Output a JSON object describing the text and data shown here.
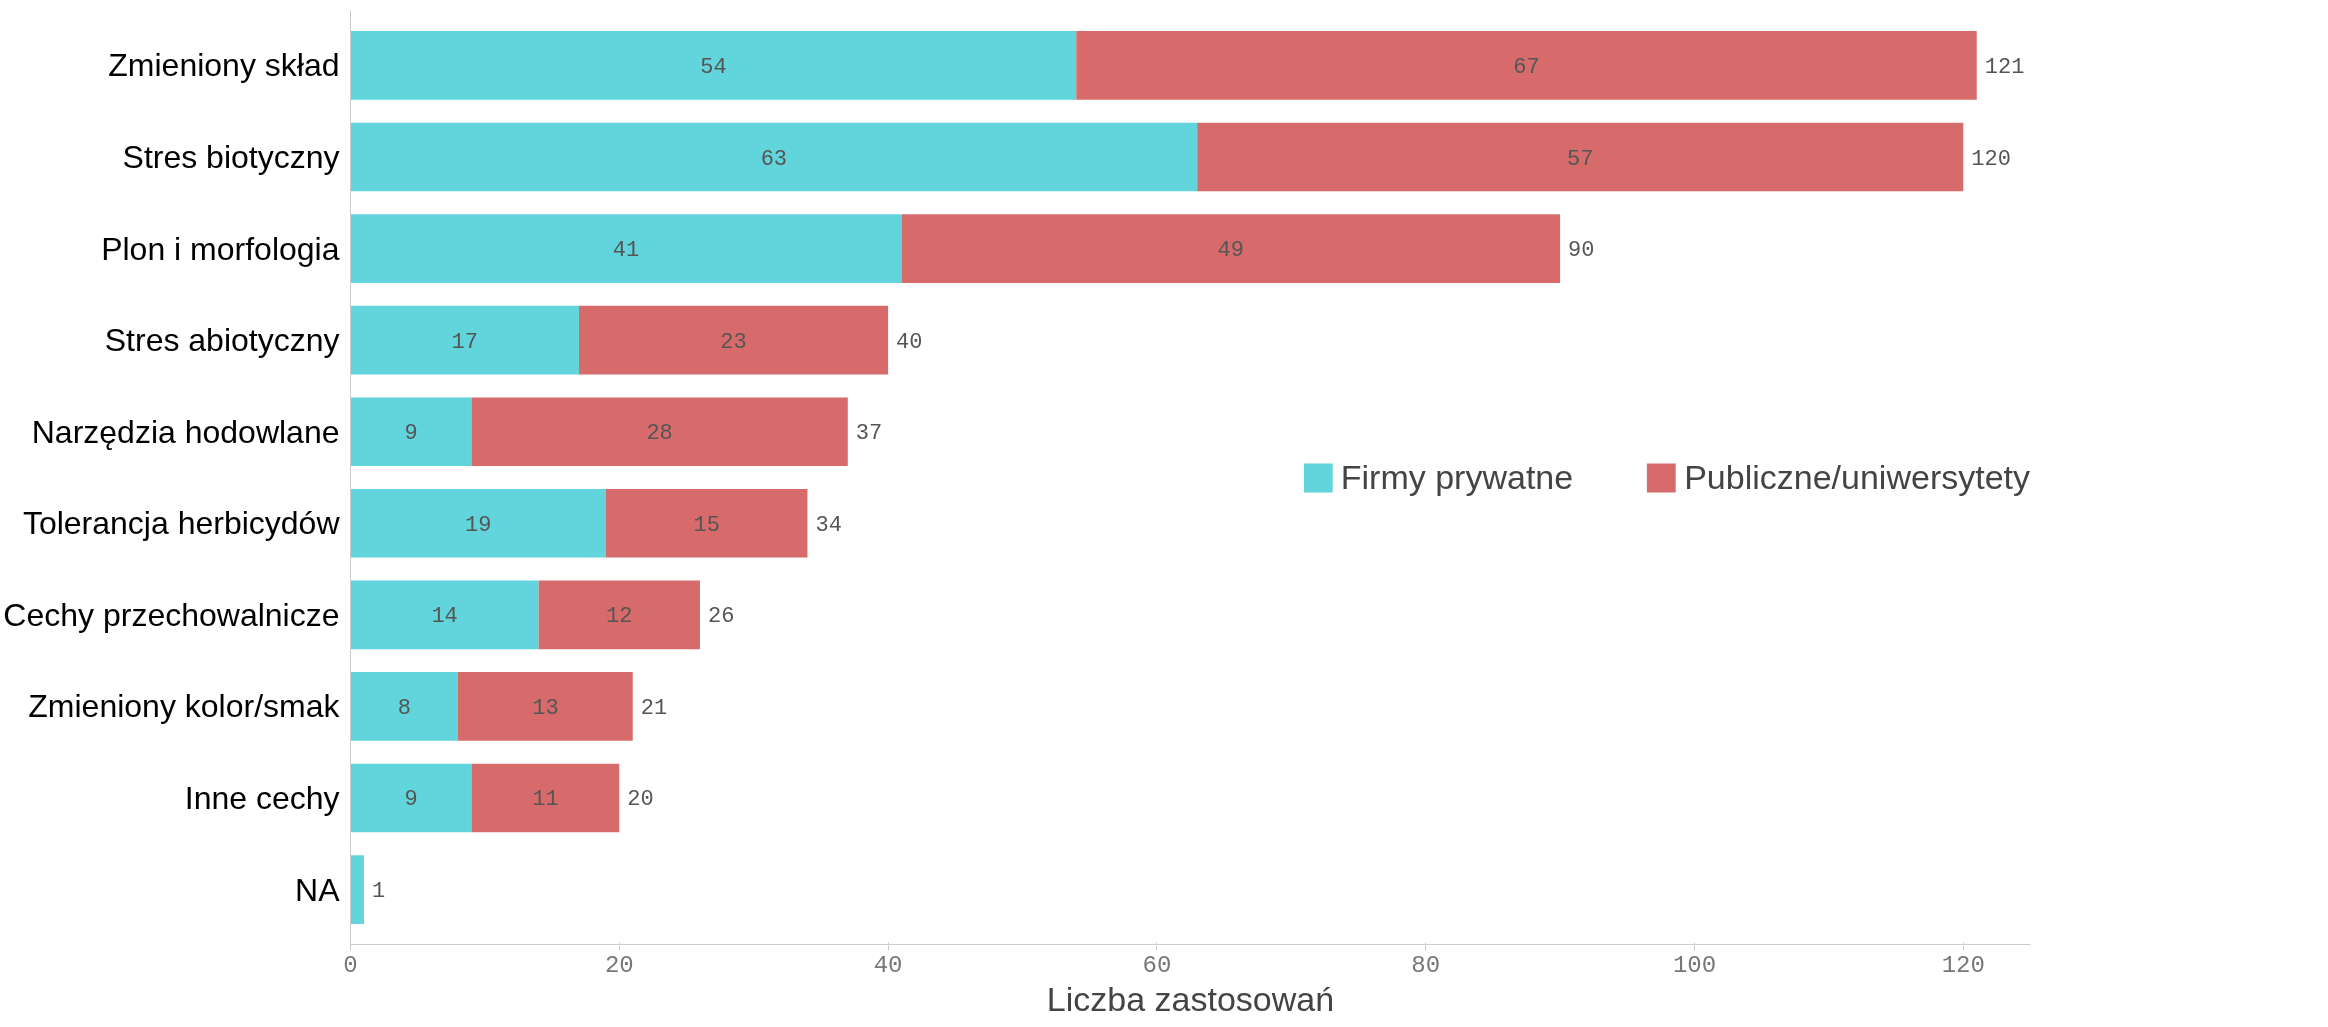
{
  "chart_data": {
    "type": "bar",
    "orientation": "horizontal",
    "stacked": true,
    "categories": [
      "Zmieniony skład",
      "Stres biotyczny",
      "Plon i morfologia",
      "Stres abiotyczny",
      "Narzędzia hodowlane",
      "Tolerancja herbicydów",
      "Cechy przechowalnicze",
      "Zmieniony kolor/smak",
      "Inne cechy",
      "NA"
    ],
    "series": [
      {
        "name": "Firmy prywatne",
        "color": "#62d4dc",
        "values": [
          54,
          63,
          41,
          17,
          9,
          19,
          14,
          8,
          9,
          1
        ],
        "value_labels": [
          "54",
          "63",
          "41",
          "17",
          "9",
          "19",
          "14",
          "8",
          "9",
          null
        ]
      },
      {
        "name": "Publiczne/uniwersytety",
        "color": "#d76b6b",
        "values": [
          67,
          57,
          49,
          23,
          28,
          15,
          12,
          13,
          11,
          null
        ],
        "value_labels": [
          "67",
          "57",
          "49",
          "23",
          "28",
          "15",
          "12",
          "13",
          "11",
          null
        ]
      }
    ],
    "totals": [
      "121",
      "120",
      "90",
      "40",
      "37",
      "34",
      "26",
      "21",
      "20",
      "1"
    ],
    "xlabel": "Liczba zastosowań",
    "xlim": [
      0,
      125
    ],
    "xticks": [
      0,
      20,
      40,
      60,
      80,
      100,
      120
    ],
    "grid": false,
    "legend": "right"
  }
}
